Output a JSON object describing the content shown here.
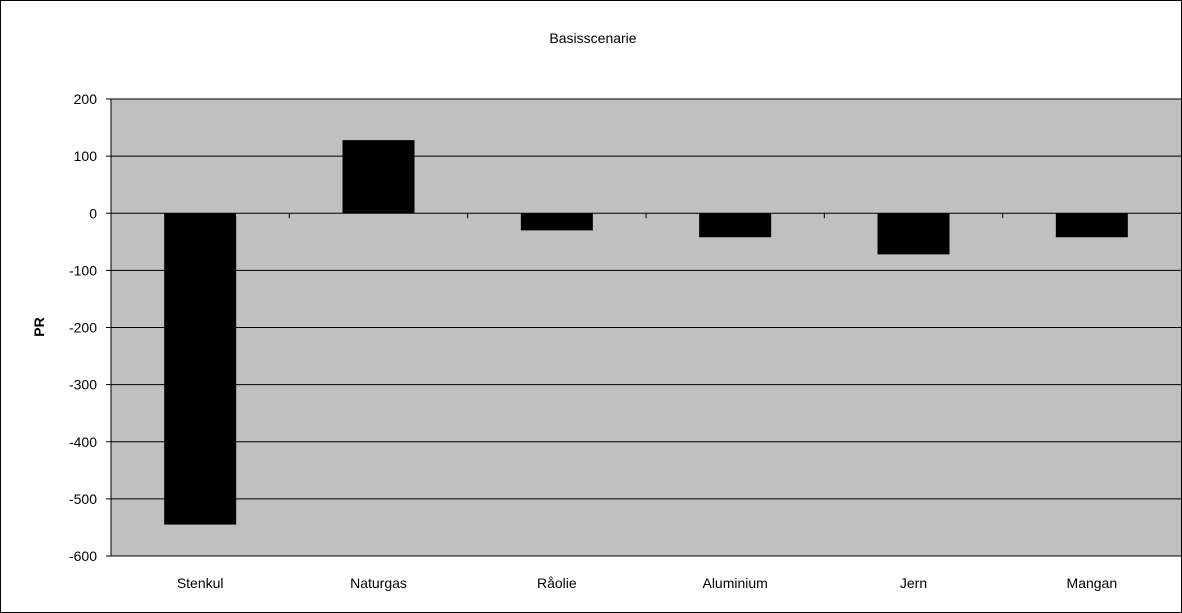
{
  "chart_data": {
    "type": "bar",
    "title": "Basisscenarie",
    "xlabel": "",
    "ylabel": "PR",
    "categories": [
      "Stenkul",
      "Naturgas",
      "Råolie",
      "Aluminium",
      "Jern",
      "Mangan"
    ],
    "series": [
      {
        "values": [
          -545,
          128,
          -30,
          -42,
          -72,
          -42
        ]
      }
    ],
    "ylim": [
      -600,
      200
    ],
    "yticks": [
      "200",
      "100",
      "0",
      "-100",
      "-200",
      "-300",
      "-400",
      "-500",
      "-600"
    ],
    "grid": true,
    "legend": "none",
    "colors": {
      "plot_bg": "#c0c0c0",
      "bar": "#000000",
      "grid": "#000000"
    }
  }
}
